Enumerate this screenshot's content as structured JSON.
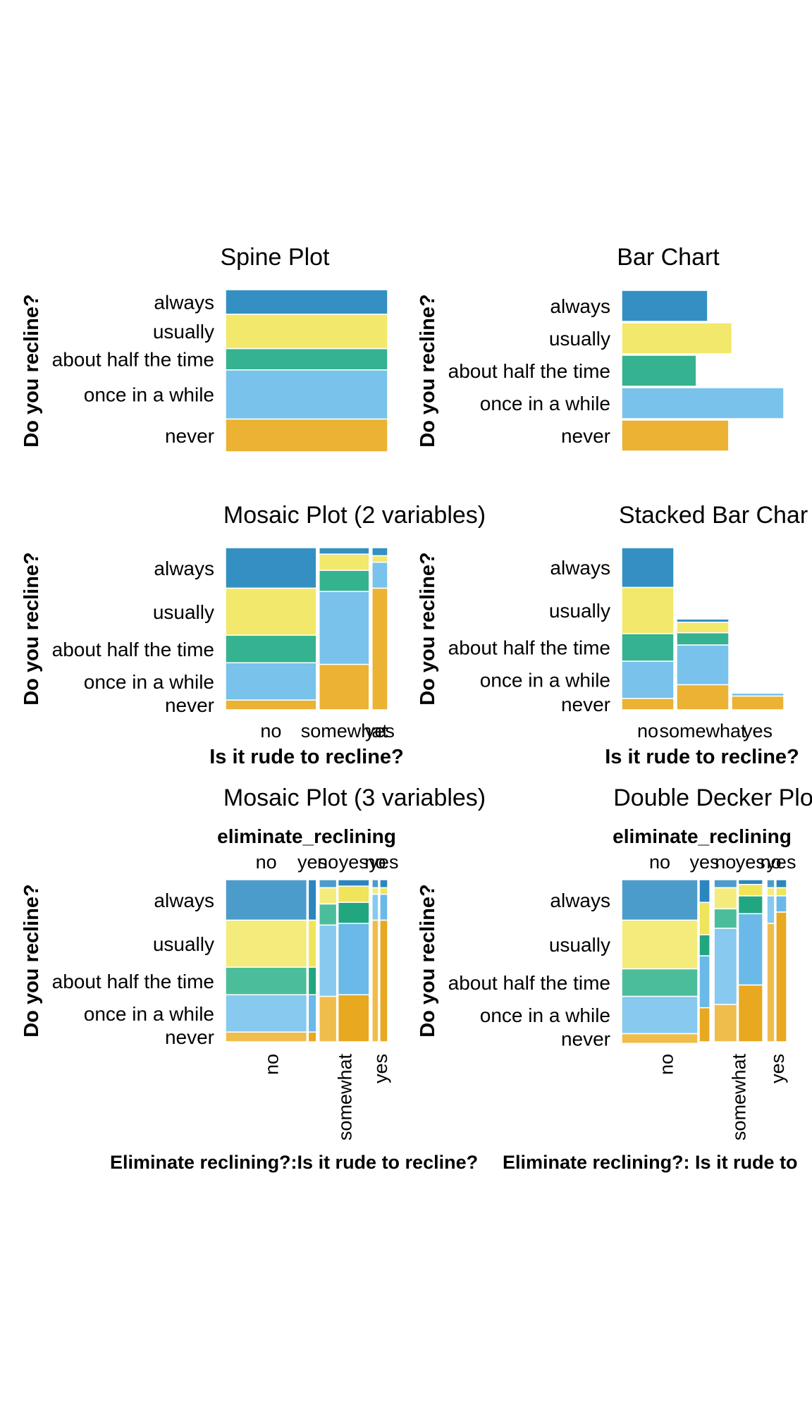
{
  "colors": {
    "always": "#348FC3",
    "usually": "#F2E86B",
    "about half the time": "#35B28F",
    "once in a while": "#78C2EC",
    "never": "#EBB233",
    "always_light": "#4C9CCB",
    "usually_light": "#F4EB7D",
    "about half the time_light": "#4CBD9A",
    "once in a while_light": "#87C9EF",
    "never_light": "#EFBD4C",
    "always_dark": "#2B86BE",
    "usually_dark": "#F0E45A",
    "about half the time_dark": "#21A77F",
    "once in a while_dark": "#6AB9E8",
    "never_dark": "#E8A81F"
  },
  "recline_levels": [
    "always",
    "usually",
    "about half the time",
    "once in a while",
    "never"
  ],
  "rude_levels": [
    "no",
    "somewhat",
    "yes"
  ],
  "elim_levels": [
    "no",
    "yes"
  ],
  "ylabel": "Do you recline?",
  "xlabel": "Is it rude to recline?",
  "bottom_label_left": "Eliminate reclining?:Is it rude to recline?",
  "bottom_label_right": "Eliminate reclining?: Is it rude to",
  "eliminate_header": "eliminate_reclining",
  "titles": {
    "spine": "Spine Plot",
    "bar": "Bar Chart",
    "mosaic2": "Mosaic Plot (2 variables)",
    "stacked": "Stacked Bar Char",
    "mosaic3": "Mosaic Plot (3 variables)",
    "double": "Double Decker Plo"
  },
  "chart_data": [
    {
      "type": "bar",
      "title": "Spine Plot",
      "ylabel": "Do you recline?",
      "categories": [
        "always",
        "usually",
        "about half the time",
        "once in a while",
        "never"
      ],
      "values": [
        0.15,
        0.21,
        0.13,
        0.3,
        0.2
      ]
    },
    {
      "type": "bar",
      "title": "Bar Chart",
      "ylabel": "Do you recline?",
      "categories": [
        "always",
        "usually",
        "about half the time",
        "once in a while",
        "never"
      ],
      "values": [
        0.53,
        0.68,
        0.46,
        1.0,
        0.66
      ]
    },
    {
      "type": "bar",
      "title": "Mosaic Plot (2 variables)",
      "ylabel": "Do you recline?",
      "xlabel": "Is it rude to recline?",
      "categories": [
        "no",
        "somewhat",
        "yes"
      ],
      "widths": [
        0.58,
        0.32,
        0.1
      ],
      "series": [
        {
          "name": "always",
          "values": [
            0.25,
            0.04,
            0.05
          ]
        },
        {
          "name": "usually",
          "values": [
            0.29,
            0.1,
            0.04
          ]
        },
        {
          "name": "about half the time",
          "values": [
            0.17,
            0.13,
            0.0
          ]
        },
        {
          "name": "once in a while",
          "values": [
            0.23,
            0.45,
            0.16
          ]
        },
        {
          "name": "never",
          "values": [
            0.06,
            0.28,
            0.75
          ]
        }
      ]
    },
    {
      "type": "bar",
      "title": "Stacked Bar Char",
      "ylabel": "Do you recline?",
      "xlabel": "Is it rude to recline?",
      "categories": [
        "no",
        "somewhat",
        "yes"
      ],
      "series": [
        {
          "name": "always",
          "values": [
            0.245,
            0.02,
            0.005
          ]
        },
        {
          "name": "usually",
          "values": [
            0.285,
            0.065,
            0.007
          ]
        },
        {
          "name": "about half the time",
          "values": [
            0.17,
            0.075,
            0.0
          ]
        },
        {
          "name": "once in a while",
          "values": [
            0.23,
            0.245,
            0.018
          ]
        },
        {
          "name": "never",
          "values": [
            0.07,
            0.155,
            0.085
          ]
        }
      ]
    },
    {
      "type": "bar",
      "title": "Mosaic Plot (3 variables)",
      "ylabel": "Do you recline?",
      "xlabel": "Eliminate reclining?:Is it rude to recline?",
      "categories": [
        "no",
        "somewhat",
        "yes"
      ],
      "widths": [
        0.58,
        0.32,
        0.1
      ],
      "subcategories": [
        "no",
        "yes"
      ],
      "subwidths": [
        [
          0.91,
          0.09
        ],
        [
          0.36,
          0.64
        ],
        [
          0.45,
          0.55
        ]
      ],
      "series": [
        {
          "name": "always",
          "values": [
            [
              0.25,
              0.25
            ],
            [
              0.05,
              0.04
            ],
            [
              0.05,
              0.05
            ]
          ]
        },
        {
          "name": "usually",
          "values": [
            [
              0.29,
              0.29
            ],
            [
              0.1,
              0.1
            ],
            [
              0.04,
              0.04
            ]
          ]
        },
        {
          "name": "about half the time",
          "values": [
            [
              0.17,
              0.17
            ],
            [
              0.13,
              0.13
            ],
            [
              0.0,
              0.0
            ]
          ]
        },
        {
          "name": "once in a while",
          "values": [
            [
              0.23,
              0.23
            ],
            [
              0.44,
              0.44
            ],
            [
              0.16,
              0.16
            ]
          ]
        },
        {
          "name": "never",
          "values": [
            [
              0.06,
              0.06
            ],
            [
              0.28,
              0.29
            ],
            [
              0.75,
              0.75
            ]
          ]
        }
      ]
    },
    {
      "type": "bar",
      "title": "Double Decker Plo",
      "ylabel": "Do you recline?",
      "xlabel": "Eliminate reclining?: Is it rude to",
      "categories": [
        "no",
        "somewhat",
        "yes"
      ],
      "subcategories": [
        "no",
        "yes"
      ],
      "widths": [
        [
          0.5,
          0.07
        ],
        [
          0.15,
          0.16
        ],
        [
          0.05,
          0.07
        ]
      ],
      "series": [
        {
          "name": "always",
          "values": [
            [
              0.25,
              0.14
            ],
            [
              0.05,
              0.03
            ],
            [
              0.05,
              0.05
            ]
          ]
        },
        {
          "name": "usually",
          "values": [
            [
              0.3,
              0.2
            ],
            [
              0.13,
              0.07
            ],
            [
              0.05,
              0.05
            ]
          ]
        },
        {
          "name": "about half the time",
          "values": [
            [
              0.17,
              0.13
            ],
            [
              0.12,
              0.11
            ],
            [
              0.0,
              0.0
            ]
          ]
        },
        {
          "name": "once in a while",
          "values": [
            [
              0.23,
              0.32
            ],
            [
              0.47,
              0.44
            ],
            [
              0.17,
              0.1
            ]
          ]
        },
        {
          "name": "never",
          "values": [
            [
              0.06,
              0.21
            ],
            [
              0.23,
              0.35
            ],
            [
              0.73,
              0.8
            ]
          ]
        }
      ]
    }
  ]
}
